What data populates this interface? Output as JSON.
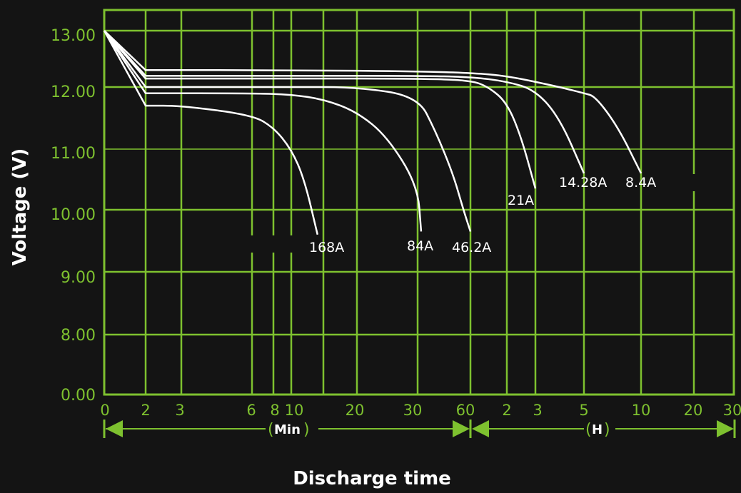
{
  "chart_data": {
    "type": "line",
    "xlabel": "Discharge time",
    "ylabel": "Voltage (V)",
    "colors": {
      "background": "#141414",
      "grid": "#7ec12f",
      "curves": "#ffffff"
    },
    "y_ticks": [
      "0.00",
      "8.00",
      "9.00",
      "10.00",
      "11.00",
      "12.00",
      "13.00"
    ],
    "x_ticks_min": [
      "0",
      "2",
      "3",
      "6",
      "8",
      "10",
      "20",
      "30",
      "60"
    ],
    "x_ticks_hours": [
      "2",
      "3",
      "5",
      "10",
      "20",
      "30"
    ],
    "time_units": {
      "minutes": "Min",
      "hours": "H"
    },
    "series": [
      {
        "name": "168A",
        "x_min": [
          0,
          2,
          3,
          6,
          8,
          10,
          12,
          14
        ],
        "y": [
          13.0,
          11.7,
          11.7,
          11.55,
          11.35,
          11.0,
          10.5,
          9.6
        ]
      },
      {
        "name": "84A",
        "x_min": [
          0,
          2,
          6,
          10,
          15,
          20,
          25,
          30,
          32
        ],
        "y": [
          13.0,
          11.9,
          11.9,
          11.88,
          11.8,
          11.6,
          11.2,
          10.4,
          9.65
        ]
      },
      {
        "name": "46.2A",
        "x_min": [
          0,
          2,
          10,
          20,
          30,
          40,
          50,
          56,
          60
        ],
        "y": [
          13.0,
          12.0,
          12.0,
          12.0,
          11.85,
          11.3,
          10.6,
          10.0,
          9.65
        ]
      },
      {
        "name": "21A",
        "x_min": [
          0,
          2,
          10,
          30,
          60,
          90,
          120,
          150,
          180
        ],
        "y": [
          13.0,
          12.15,
          12.15,
          12.15,
          12.12,
          12.0,
          11.75,
          11.2,
          10.35
        ]
      },
      {
        "name": "14.28A",
        "x_min": [
          0,
          2,
          10,
          30,
          60,
          120,
          180,
          240,
          300
        ],
        "y": [
          13.0,
          12.2,
          12.2,
          12.2,
          12.18,
          12.1,
          11.95,
          11.5,
          10.6
        ]
      },
      {
        "name": "8.4A",
        "x_min": [
          0,
          2,
          10,
          30,
          60,
          120,
          240,
          300,
          360,
          480,
          600
        ],
        "y": [
          13.0,
          12.3,
          12.3,
          12.28,
          12.25,
          12.2,
          12.0,
          11.9,
          11.85,
          11.35,
          10.6
        ]
      }
    ]
  }
}
